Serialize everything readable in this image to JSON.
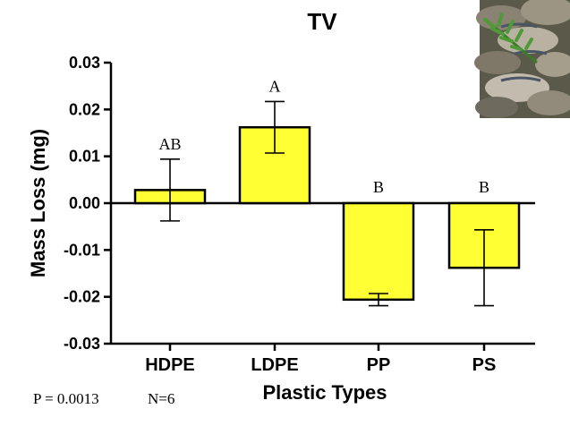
{
  "chart_data": {
    "type": "bar",
    "title": "TV",
    "xlabel": "Plastic Types",
    "ylabel": "Mass Loss (mg)",
    "categories": [
      "HDPE",
      "LDPE",
      "PP",
      "PS"
    ],
    "values": [
      0.0028,
      0.0162,
      -0.0206,
      -0.0138
    ],
    "errors": [
      0.0066,
      0.0055,
      0.0013,
      0.0081
    ],
    "significance_labels": [
      "AB",
      "A",
      "B",
      "B"
    ],
    "ylim": [
      -0.03,
      0.03
    ],
    "yticks": [
      -0.03,
      -0.02,
      -0.01,
      0.0,
      0.01,
      0.02,
      0.03
    ],
    "ytick_labels": [
      "-0.03",
      "-0.02",
      "-0.01",
      "0.00",
      "0.01",
      "0.02",
      "0.03"
    ],
    "bar_color": "#ffff33",
    "grid": false
  },
  "footer": {
    "p_value": "P = 0.0013",
    "n_value": "N=6"
  },
  "photo": {
    "icon": "turkey-tail-fungus-photo"
  }
}
